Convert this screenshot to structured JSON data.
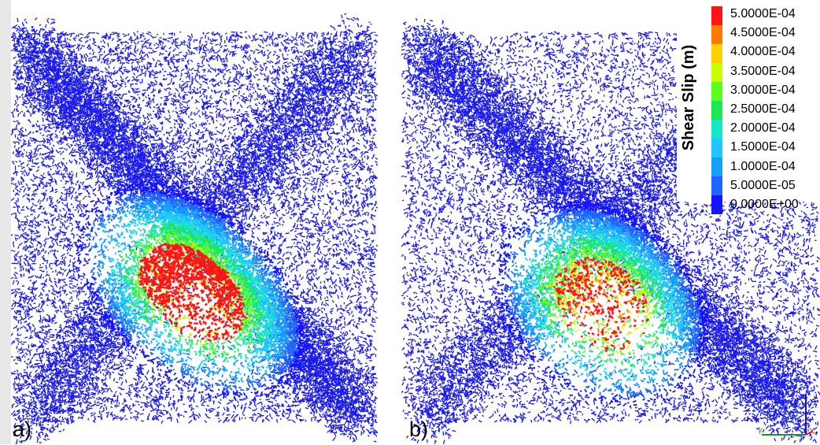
{
  "panels": [
    {
      "label": "a)"
    },
    {
      "label": "b)"
    }
  ],
  "legend": {
    "title": "Shear Slip (m)",
    "entries": [
      {
        "value": "5.0000E-04",
        "color": "#ff1414"
      },
      {
        "value": "4.5000E-04",
        "color": "#ff7a00"
      },
      {
        "value": "4.0000E-04",
        "color": "#ffd000"
      },
      {
        "value": "3.5000E-04",
        "color": "#c8ff00"
      },
      {
        "value": "3.0000E-04",
        "color": "#5aff1e"
      },
      {
        "value": "2.5000E-04",
        "color": "#1ee650"
      },
      {
        "value": "2.0000E-04",
        "color": "#14e6c8"
      },
      {
        "value": "1.5000E-04",
        "color": "#1ec8ff"
      },
      {
        "value": "1.0000E-04",
        "color": "#14a0ff"
      },
      {
        "value": "5.0000E-05",
        "color": "#1e64ff"
      },
      {
        "value": "0.0000E+00",
        "color": "#1414ff"
      }
    ]
  },
  "axes": {
    "z": "Z",
    "y": "Y",
    "x": "X"
  },
  "colors": {
    "background_slip": "#1a1aee"
  }
}
